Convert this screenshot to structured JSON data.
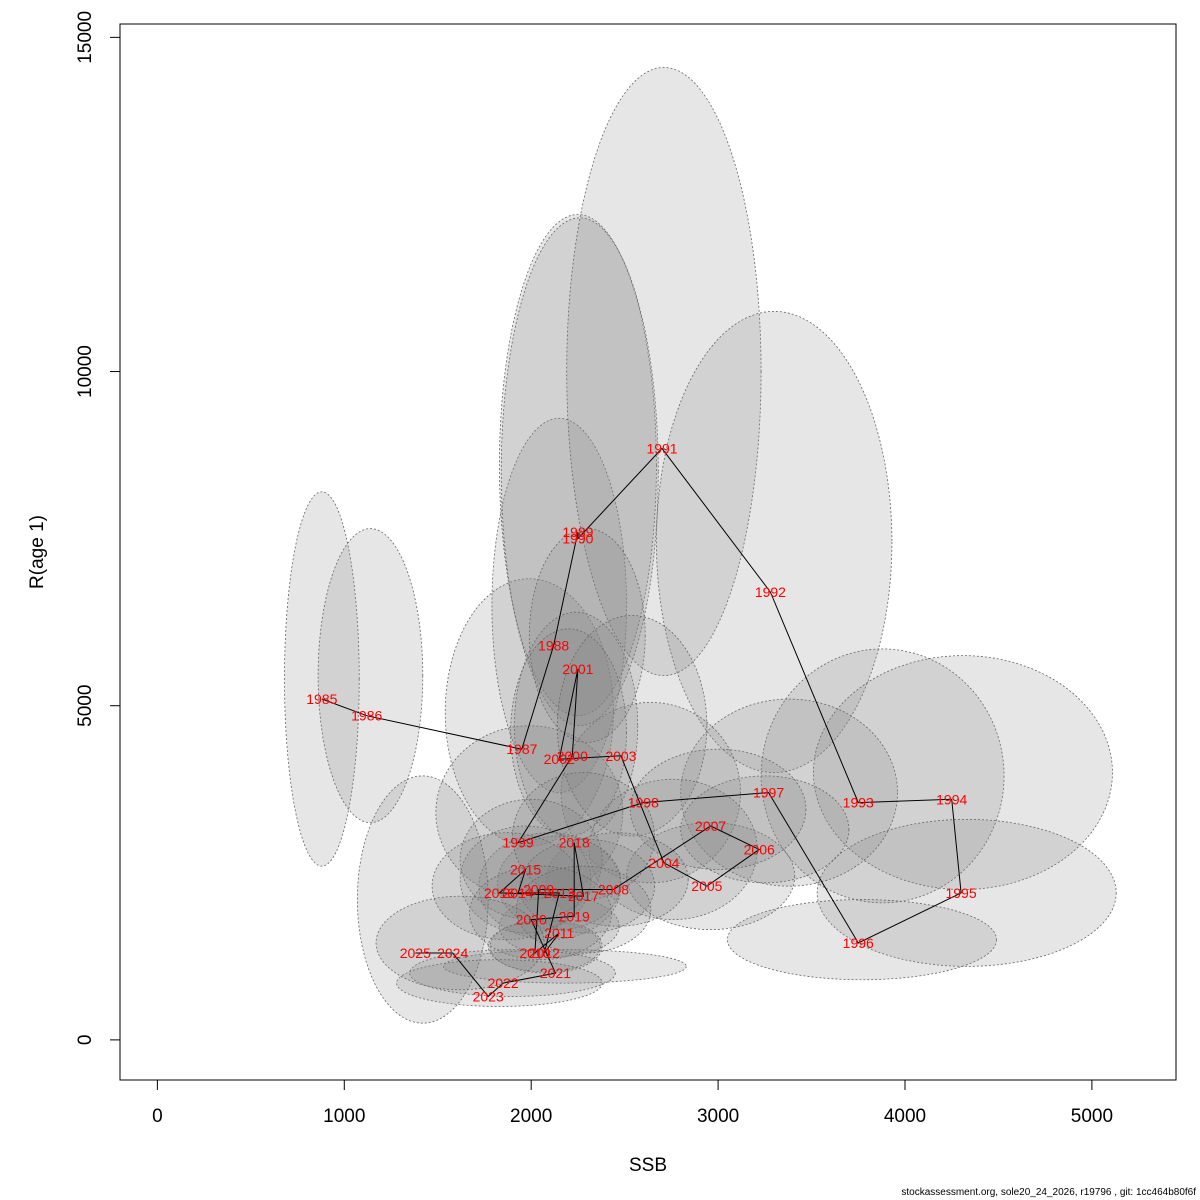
{
  "chart_data": {
    "type": "scatter",
    "xlabel": "SSB",
    "ylabel": "R(age 1)",
    "xlim": [
      -200,
      5450
    ],
    "ylim": [
      -600,
      15200
    ],
    "xticks": [
      0,
      1000,
      2000,
      3000,
      4000,
      5000
    ],
    "yticks": [
      0,
      5000,
      10000,
      15000
    ],
    "grid": false,
    "points": [
      {
        "year": "1985",
        "ssb": 880,
        "r": 5100
      },
      {
        "year": "1986",
        "ssb": 1120,
        "r": 4850
      },
      {
        "year": "1987",
        "ssb": 1950,
        "r": 4350
      },
      {
        "year": "1988",
        "ssb": 2120,
        "r": 5900
      },
      {
        "year": "1989",
        "ssb": 2250,
        "r": 7600
      },
      {
        "year": "1990",
        "ssb": 2250,
        "r": 7500
      },
      {
        "year": "1991",
        "ssb": 2700,
        "r": 8850
      },
      {
        "year": "1992",
        "ssb": 3280,
        "r": 6700
      },
      {
        "year": "1993",
        "ssb": 3750,
        "r": 3550
      },
      {
        "year": "1994",
        "ssb": 4250,
        "r": 3600
      },
      {
        "year": "1995",
        "ssb": 4300,
        "r": 2200
      },
      {
        "year": "1996",
        "ssb": 3750,
        "r": 1450
      },
      {
        "year": "1997",
        "ssb": 3270,
        "r": 3700
      },
      {
        "year": "1998",
        "ssb": 2600,
        "r": 3550
      },
      {
        "year": "1999",
        "ssb": 1930,
        "r": 2950
      },
      {
        "year": "2000",
        "ssb": 2220,
        "r": 4250
      },
      {
        "year": "2001",
        "ssb": 2250,
        "r": 5550
      },
      {
        "year": "2002",
        "ssb": 2150,
        "r": 4200
      },
      {
        "year": "2003",
        "ssb": 2480,
        "r": 4250
      },
      {
        "year": "2004",
        "ssb": 2710,
        "r": 2650
      },
      {
        "year": "2005",
        "ssb": 2940,
        "r": 2300
      },
      {
        "year": "2006",
        "ssb": 3220,
        "r": 2850
      },
      {
        "year": "2007",
        "ssb": 2960,
        "r": 3200
      },
      {
        "year": "2008",
        "ssb": 2440,
        "r": 2250
      },
      {
        "year": "2009",
        "ssb": 2040,
        "r": 2250
      },
      {
        "year": "2010",
        "ssb": 2020,
        "r": 1300
      },
      {
        "year": "2011",
        "ssb": 2150,
        "r": 1600
      },
      {
        "year": "2012",
        "ssb": 2070,
        "r": 1300
      },
      {
        "year": "2013",
        "ssb": 2150,
        "r": 2200
      },
      {
        "year": "2014",
        "ssb": 1930,
        "r": 2200
      },
      {
        "year": "2015",
        "ssb": 1970,
        "r": 2550
      },
      {
        "year": "2016",
        "ssb": 1830,
        "r": 2200
      },
      {
        "year": "2017",
        "ssb": 2280,
        "r": 2150
      },
      {
        "year": "2018",
        "ssb": 2230,
        "r": 2950
      },
      {
        "year": "2019",
        "ssb": 2230,
        "r": 1850
      },
      {
        "year": "2020",
        "ssb": 2000,
        "r": 1800
      },
      {
        "year": "2021",
        "ssb": 2130,
        "r": 1000
      },
      {
        "year": "2022",
        "ssb": 1850,
        "r": 850
      },
      {
        "year": "2023",
        "ssb": 1770,
        "r": 650
      },
      {
        "year": "2024",
        "ssb": 1580,
        "r": 1300
      },
      {
        "year": "2025",
        "ssb": 1380,
        "r": 1300
      }
    ],
    "ellipses": [
      {
        "year": "1985",
        "cx": 880,
        "cy": 5400,
        "rx": 200,
        "ry": 2800
      },
      {
        "year": "1986",
        "cx": 1140,
        "cy": 5450,
        "rx": 280,
        "ry": 2200
      },
      {
        "year": "1987",
        "cx": 1990,
        "cy": 4900,
        "rx": 450,
        "ry": 2000
      },
      {
        "year": "1988",
        "cx": 2150,
        "cy": 6500,
        "rx": 360,
        "ry": 2800
      },
      {
        "year": "1989",
        "cx": 2250,
        "cy": 8600,
        "rx": 420,
        "ry": 3750
      },
      {
        "year": "1990",
        "cx": 2260,
        "cy": 8500,
        "rx": 420,
        "ry": 3800
      },
      {
        "year": "1991",
        "cx": 2710,
        "cy": 10000,
        "rx": 520,
        "ry": 4550
      },
      {
        "year": "1992",
        "cx": 3300,
        "cy": 7450,
        "rx": 630,
        "ry": 3450
      },
      {
        "year": "1993",
        "cx": 3880,
        "cy": 3950,
        "rx": 650,
        "ry": 1900
      },
      {
        "year": "1994",
        "cx": 4310,
        "cy": 4000,
        "rx": 800,
        "ry": 1750
      },
      {
        "year": "1995",
        "cx": 4330,
        "cy": 2200,
        "rx": 800,
        "ry": 1100
      },
      {
        "year": "1996",
        "cx": 3770,
        "cy": 1500,
        "rx": 720,
        "ry": 600
      },
      {
        "year": "1997",
        "cx": 3380,
        "cy": 3700,
        "rx": 580,
        "ry": 1400
      },
      {
        "year": "1998",
        "cx": 2640,
        "cy": 3700,
        "rx": 480,
        "ry": 1350
      },
      {
        "year": "1999",
        "cx": 1990,
        "cy": 3400,
        "rx": 500,
        "ry": 1300
      },
      {
        "year": "2000",
        "cx": 2240,
        "cy": 4700,
        "rx": 330,
        "ry": 1700
      },
      {
        "year": "2001",
        "cx": 2300,
        "cy": 6050,
        "rx": 310,
        "ry": 1600
      },
      {
        "year": "2002",
        "cx": 2200,
        "cy": 4600,
        "rx": 310,
        "ry": 1550
      },
      {
        "year": "2003",
        "cx": 2540,
        "cy": 4700,
        "rx": 400,
        "ry": 1650
      },
      {
        "year": "2004",
        "cx": 2760,
        "cy": 2850,
        "rx": 450,
        "ry": 1050
      },
      {
        "year": "2005",
        "cx": 2960,
        "cy": 2450,
        "rx": 450,
        "ry": 800
      },
      {
        "year": "2006",
        "cx": 3250,
        "cy": 3150,
        "rx": 450,
        "ry": 800
      },
      {
        "year": "2007",
        "cx": 3000,
        "cy": 3450,
        "rx": 470,
        "ry": 900
      },
      {
        "year": "2008",
        "cx": 2460,
        "cy": 2400,
        "rx": 380,
        "ry": 700
      },
      {
        "year": "2009",
        "cx": 2100,
        "cy": 2300,
        "rx": 380,
        "ry": 800
      },
      {
        "year": "2010",
        "cx": 2070,
        "cy": 1400,
        "rx": 300,
        "ry": 380
      },
      {
        "year": "2011",
        "cx": 2150,
        "cy": 1700,
        "rx": 320,
        "ry": 450
      },
      {
        "year": "2012",
        "cx": 2080,
        "cy": 1400,
        "rx": 300,
        "ry": 400
      },
      {
        "year": "2013",
        "cx": 2150,
        "cy": 2350,
        "rx": 330,
        "ry": 700
      },
      {
        "year": "2014",
        "cx": 1970,
        "cy": 2400,
        "rx": 350,
        "ry": 800
      },
      {
        "year": "2015",
        "cx": 2000,
        "cy": 2700,
        "rx": 380,
        "ry": 900
      },
      {
        "year": "2016",
        "cx": 1870,
        "cy": 2300,
        "rx": 400,
        "ry": 800
      },
      {
        "year": "2017",
        "cx": 2300,
        "cy": 2300,
        "rx": 360,
        "ry": 700
      },
      {
        "year": "2018",
        "cx": 2280,
        "cy": 3050,
        "rx": 380,
        "ry": 950
      },
      {
        "year": "2019",
        "cx": 2280,
        "cy": 1950,
        "rx": 360,
        "ry": 650
      },
      {
        "year": "2020",
        "cx": 2050,
        "cy": 1900,
        "rx": 380,
        "ry": 700
      },
      {
        "year": "2021",
        "cx": 2180,
        "cy": 1100,
        "rx": 650,
        "ry": 250
      },
      {
        "year": "2022",
        "cx": 1900,
        "cy": 1000,
        "rx": 550,
        "ry": 350
      },
      {
        "year": "2023",
        "cx": 1830,
        "cy": 850,
        "rx": 550,
        "ry": 350
      },
      {
        "year": "2024",
        "cx": 1620,
        "cy": 1450,
        "rx": 450,
        "ry": 700
      },
      {
        "year": "2025",
        "cx": 1420,
        "cy": 2100,
        "rx": 350,
        "ry": 1850
      }
    ]
  },
  "footer": "stockassessment.org, sole20_24_2026, r19796 , git: 1cc464b80f6f"
}
